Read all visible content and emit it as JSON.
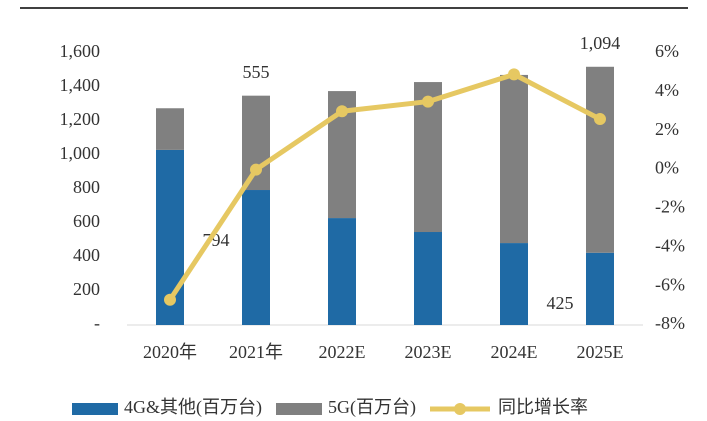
{
  "chart_data": {
    "type": "bar",
    "categories": [
      "2020年",
      "2021年",
      "2022E",
      "2023E",
      "2024E",
      "2025E"
    ],
    "stacked": true,
    "series": [
      {
        "name": "4G&其他(百万台)",
        "color": "#1f6aa5",
        "values": [
          1030,
          794,
          629,
          547,
          482,
          425
        ],
        "value_labels": [
          null,
          "794",
          null,
          null,
          null,
          "425"
        ]
      },
      {
        "name": "5G(百万台)",
        "color": "#808080",
        "values": [
          245,
          555,
          747,
          882,
          989,
          1094
        ],
        "value_labels": [
          null,
          "555",
          null,
          null,
          null,
          "1,094"
        ]
      },
      {
        "name": "同比增长率",
        "color": "#e6c862",
        "type": "line",
        "axis": "y2",
        "values": [
          -6.7,
          0,
          3.0,
          3.5,
          4.9,
          2.6
        ]
      }
    ],
    "ylim": [
      0,
      1600
    ],
    "yticks": [
      {
        "value": 0,
        "label": "-"
      },
      200,
      400,
      600,
      800,
      {
        "value": 1000,
        "label": "1,000"
      },
      {
        "value": 1200,
        "label": "1,200"
      },
      {
        "value": 1400,
        "label": "1,400"
      },
      {
        "value": 1600,
        "label": "1,600"
      }
    ],
    "y2lim": [
      -8,
      6
    ],
    "y2ticks": [
      {
        "value": -8,
        "label": "-8%"
      },
      {
        "value": -6,
        "label": "-6%"
      },
      {
        "value": -4,
        "label": "-4%"
      },
      {
        "value": -2,
        "label": "-2%"
      },
      {
        "value": 0,
        "label": "0%"
      },
      {
        "value": 2,
        "label": "2%"
      },
      {
        "value": 4,
        "label": "4%"
      },
      {
        "value": 6,
        "label": "6%"
      }
    ],
    "legend": "bottom"
  }
}
